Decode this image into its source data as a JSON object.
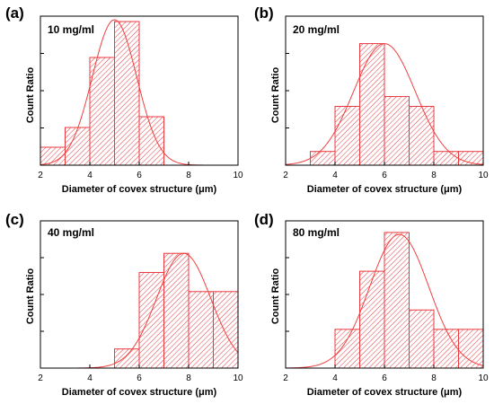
{
  "colors": {
    "bar_stroke": "#e8393f",
    "hatch": "#e8393f",
    "curve": "#f04040",
    "axis": "#000000"
  },
  "chart_data": [
    {
      "type": "bar",
      "panel_label": "(a)",
      "title": "10 mg/ml",
      "xlabel": "Diameter of covex structure (μm)",
      "ylabel": "Count Ratio",
      "xlim": [
        2,
        10
      ],
      "x_ticks": [
        "2",
        "4",
        "6",
        "8",
        "10"
      ],
      "y_ticks_shown": false,
      "bin_edges": [
        2,
        3,
        4,
        5,
        6,
        7
      ],
      "values": [
        0.1,
        0.21,
        0.6,
        0.8,
        0.27
      ],
      "ylim": [
        0,
        0.83
      ],
      "fit": {
        "mean": 5.0,
        "sd": 0.9,
        "peak": 0.81
      }
    },
    {
      "type": "bar",
      "panel_label": "(b)",
      "title": "20 mg/ml",
      "xlabel": "Diameter of covex structure (μm)",
      "ylabel": "Count Ratio",
      "xlim": [
        2,
        10
      ],
      "x_ticks": [
        "2",
        "4",
        "6",
        "8",
        "10"
      ],
      "y_ticks_shown": false,
      "bin_edges": [
        3,
        4,
        5,
        6,
        7,
        8,
        9,
        10
      ],
      "values": [
        0.07,
        0.3,
        0.62,
        0.35,
        0.3,
        0.07,
        0.07
      ],
      "ylim": [
        0,
        0.76
      ],
      "fit": {
        "mean": 6.0,
        "sd": 1.25,
        "peak": 0.62
      }
    },
    {
      "type": "bar",
      "panel_label": "(c)",
      "title": "40 mg/ml",
      "xlabel": "Diameter of covex structure (μm)",
      "ylabel": "Count Ratio",
      "xlim": [
        2,
        10
      ],
      "x_ticks": [
        "2",
        "4",
        "6",
        "8",
        "10"
      ],
      "y_ticks_shown": false,
      "bin_edges": [
        5,
        6,
        7,
        8,
        9,
        10
      ],
      "values": [
        0.1,
        0.5,
        0.6,
        0.4,
        0.4
      ],
      "ylim": [
        0,
        0.77
      ],
      "fit": {
        "mean": 7.8,
        "sd": 1.1,
        "peak": 0.6
      }
    },
    {
      "type": "bar",
      "panel_label": "(d)",
      "title": "80 mg/ml",
      "xlabel": "Diameter of covex structure (μm)",
      "ylabel": "Count Ratio",
      "xlim": [
        2,
        10
      ],
      "x_ticks": [
        "2",
        "4",
        "6",
        "8",
        "10"
      ],
      "y_ticks_shown": false,
      "bin_edges": [
        4,
        5,
        6,
        7,
        8,
        9,
        10
      ],
      "values": [
        0.2,
        0.5,
        0.7,
        0.3,
        0.2,
        0.2
      ],
      "ylim": [
        0,
        0.76
      ],
      "fit": {
        "mean": 6.6,
        "sd": 1.2,
        "peak": 0.69
      }
    }
  ]
}
